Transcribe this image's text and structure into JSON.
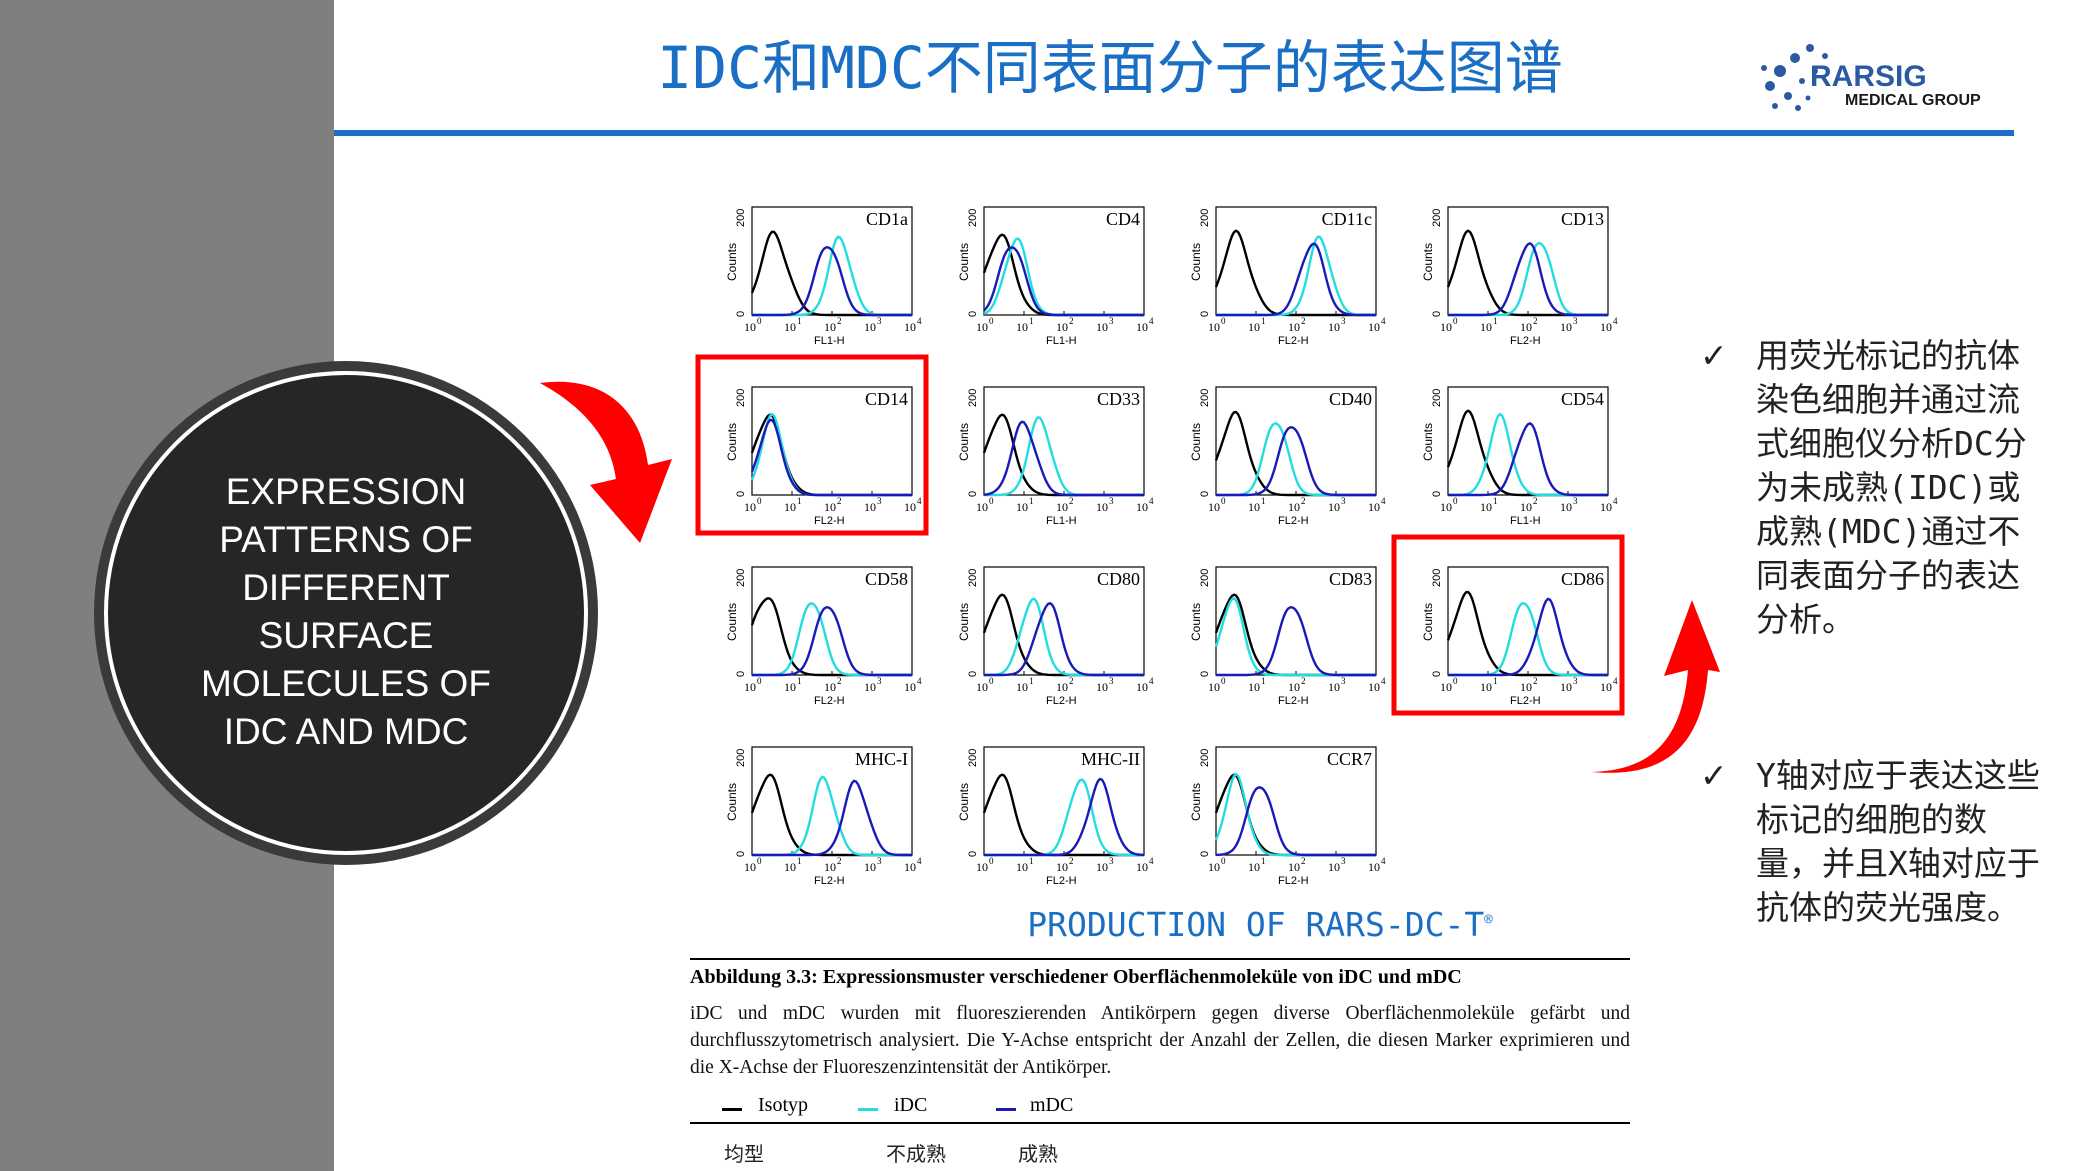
{
  "slide": {
    "title": "IDC和MDC不同表面分子的表达图谱",
    "logo": {
      "brand": "RARSIG",
      "sub": "MEDICAL GROUP"
    },
    "circle_text": "EXPRESSION\nPATTERNS OF\nDIFFERENT\nSURFACE\nMOLECULES OF\nIDC AND MDC",
    "figure_caption": "PRODUCTION OF RARS-DC-T",
    "figure_caption_mark": "®",
    "bullets": [
      {
        "check": "✓",
        "text": "用荧光标记的抗体染色细胞并通过流式细胞仪分析DC分为未成熟(IDC)或成熟(MDC)通过不同表面分子的表达分析。"
      },
      {
        "check": "✓",
        "text": "Y轴对应于表达这些标记的细胞的数量，并且X轴对应于抗体的荧光强度。"
      }
    ],
    "colors": {
      "accent": "#1a6fc4",
      "sidebar": "#7f7f7f",
      "circle": "#262626",
      "highlight": "#ff0000"
    }
  },
  "figure": {
    "heading": "Abbildung 3.3: Expressionsmuster verschiedener Oberflächenmoleküle von iDC und mDC",
    "body": "iDC und mDC wurden mit fluoreszierenden Antikörpern gegen diverse Oberflächenmoleküle gefärbt und durchflusszytometrisch analysiert. Die Y-Achse entspricht der Anzahl der Zellen, die diesen Marker exprimieren und die X-Achse der Fluoreszenzintensität der Antikörper.",
    "legend": [
      {
        "label": "Isotyp",
        "color": "#000000"
      },
      {
        "label": "iDC",
        "color": "#22dde0"
      },
      {
        "label": "mDC",
        "color": "#1a1ab8"
      }
    ],
    "legend_cn": [
      "均型",
      "不成熟",
      "成熟"
    ],
    "axis": {
      "y_label": "Counts",
      "y_top": "200",
      "y_zero": "0"
    }
  },
  "chart_data": {
    "type": "histogram-grid",
    "panels": [
      {
        "label": "CD1a",
        "xlabel": "FL1-H",
        "iso": 0.55,
        "idc": 2.2,
        "mdc": 1.9,
        "highlight": false
      },
      {
        "label": "CD4",
        "xlabel": "FL1-H",
        "iso": 0.4,
        "idc": 0.8,
        "mdc": 0.7,
        "highlight": false
      },
      {
        "label": "CD11c",
        "xlabel": "FL2-H",
        "iso": 0.5,
        "idc": 2.6,
        "mdc": 2.4,
        "highlight": false
      },
      {
        "label": "CD13",
        "xlabel": "FL2-H",
        "iso": 0.5,
        "idc": 2.3,
        "mdc": 2.0,
        "highlight": false
      },
      {
        "label": "CD14",
        "xlabel": "FL2-H",
        "iso": 0.4,
        "idc": 0.5,
        "mdc": 0.45,
        "highlight": true
      },
      {
        "label": "CD33",
        "xlabel": "FL1-H",
        "iso": 0.4,
        "idc": 1.4,
        "mdc": 1.0,
        "highlight": false
      },
      {
        "label": "CD40",
        "xlabel": "FL2-H",
        "iso": 0.45,
        "idc": 1.5,
        "mdc": 1.9,
        "highlight": false
      },
      {
        "label": "CD54",
        "xlabel": "FL1-H",
        "iso": 0.5,
        "idc": 1.3,
        "mdc": 2.0,
        "highlight": false
      },
      {
        "label": "CD58",
        "xlabel": "FL2-H",
        "iso": 0.35,
        "idc": 1.5,
        "mdc": 1.9,
        "highlight": false
      },
      {
        "label": "CD80",
        "xlabel": "FL2-H",
        "iso": 0.4,
        "idc": 1.2,
        "mdc": 1.6,
        "highlight": false
      },
      {
        "label": "CD83",
        "xlabel": "FL2-H",
        "iso": 0.4,
        "idc": 0.4,
        "mdc": 1.9,
        "highlight": false
      },
      {
        "label": "CD86",
        "xlabel": "FL2-H",
        "iso": 0.45,
        "idc": 1.9,
        "mdc": 2.5,
        "highlight": true
      },
      {
        "label": "MHC-I",
        "xlabel": "FL2-H",
        "iso": 0.4,
        "idc": 1.8,
        "mdc": 2.6,
        "highlight": false
      },
      {
        "label": "MHC-II",
        "xlabel": "FL2-H",
        "iso": 0.4,
        "idc": 2.4,
        "mdc": 2.9,
        "highlight": false
      },
      {
        "label": "CCR7",
        "xlabel": "FL2-H",
        "iso": 0.4,
        "idc": 0.5,
        "mdc": 1.1,
        "highlight": false
      }
    ],
    "x_ticks": [
      "10",
      "10",
      "10",
      "10",
      "10"
    ],
    "x_tick_exp": [
      "0",
      "1",
      "2",
      "3",
      "4"
    ]
  }
}
